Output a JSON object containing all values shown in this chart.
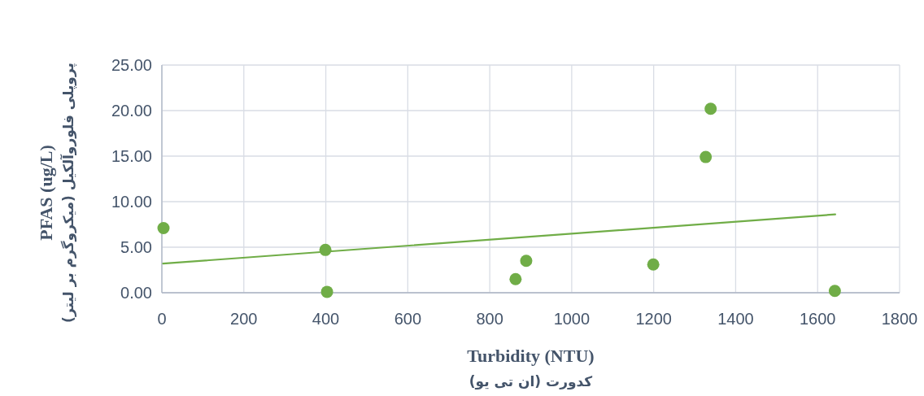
{
  "chart_data": {
    "type": "scatter",
    "xlabel": "Turbidity (NTU)\nکدورت (ان تی یو)",
    "ylabel": "PFAS (ug/L)\nپروپلی فلوروآلکیل (میکروگرم بر لیتر)",
    "xlim": [
      0,
      1800
    ],
    "xticks": [
      0,
      200,
      400,
      600,
      800,
      1000,
      1200,
      1400,
      1600,
      1800
    ],
    "ylim": [
      0,
      25
    ],
    "yticks": [
      {
        "value": 0,
        "label": "0.00"
      },
      {
        "value": 5,
        "label": "5.00"
      },
      {
        "value": 10,
        "label": "10.00"
      },
      {
        "value": 15,
        "label": "15.00"
      },
      {
        "value": 20,
        "label": "20.00"
      },
      {
        "value": 25,
        "label": "25.00"
      }
    ],
    "grid": true,
    "series": [
      {
        "type": "scatter",
        "marker": "circle",
        "color": "#70ad47",
        "x": [
          4,
          399,
          403,
          863,
          889,
          1199,
          1327,
          1339,
          1642
        ],
        "values": [
          7.1,
          4.7,
          0.1,
          1.5,
          3.5,
          3.1,
          14.9,
          20.2,
          0.2
        ]
      },
      {
        "type": "line",
        "color": "#70ad47",
        "x": [
          3,
          1643
        ],
        "values": [
          3.2,
          8.6
        ]
      }
    ]
  }
}
